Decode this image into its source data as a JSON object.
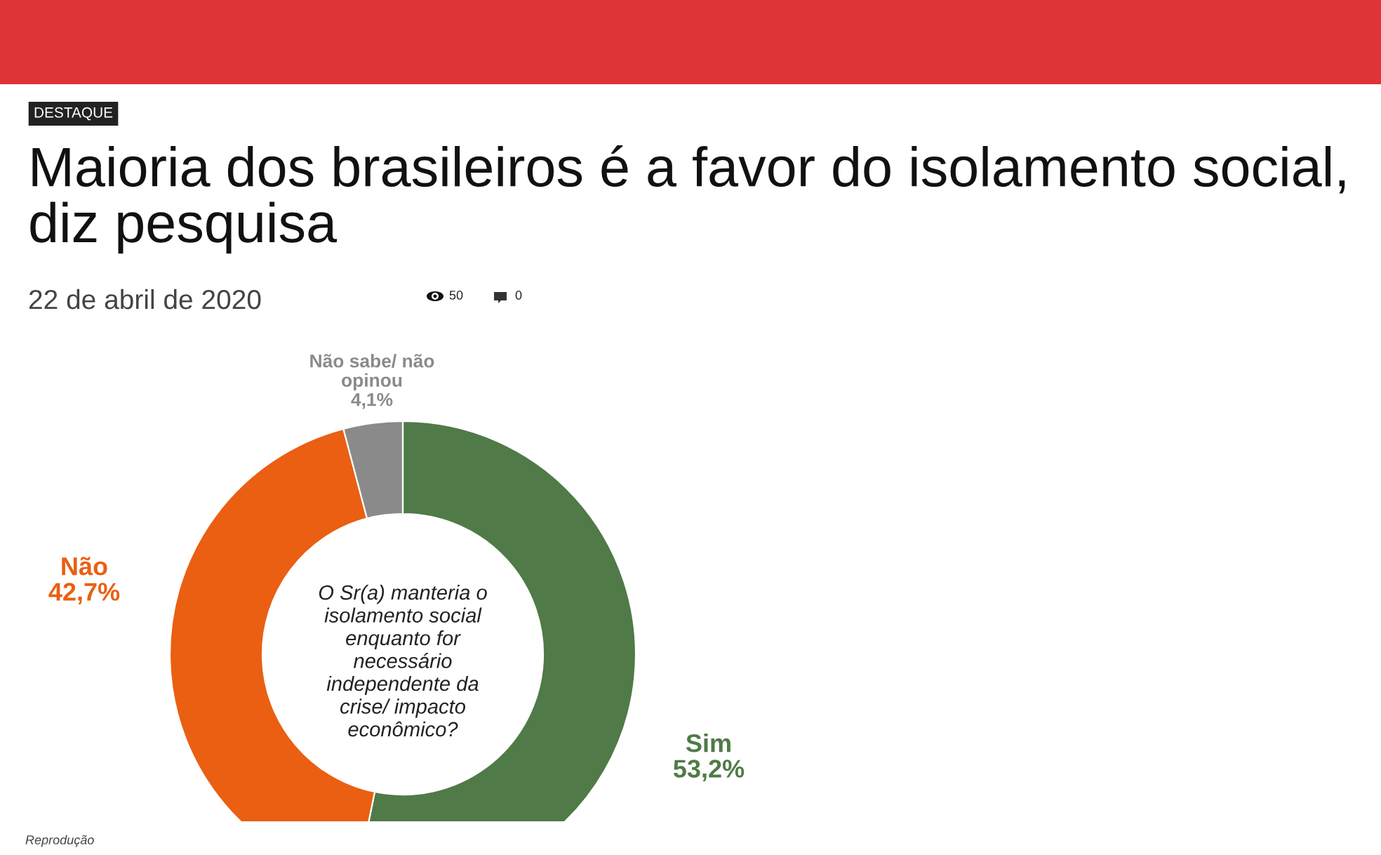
{
  "chart_data": {
    "type": "donut",
    "title": "Maioria dos brasileiros é a favor do isolamento social, diz pesquisa",
    "categories": [
      "Sim",
      "Não",
      "Não sabe/ não\nopinou"
    ],
    "values": [
      53.2,
      42.7,
      4.1
    ],
    "value_labels": [
      "53,2%",
      "42,7%",
      "4,1%"
    ],
    "colors": [
      "#507a47",
      "#ea5f12",
      "#8a8a8a"
    ],
    "annotations": [
      "DESTAQUE",
      "22 de abril de 2020",
      "50",
      "0",
      "O Sr(a) manteria o\nisolamento social\nenquanto for\nnecessário\nindependente da\ncrise/ impacto\neconômico?",
      "Reprodução"
    ]
  }
}
